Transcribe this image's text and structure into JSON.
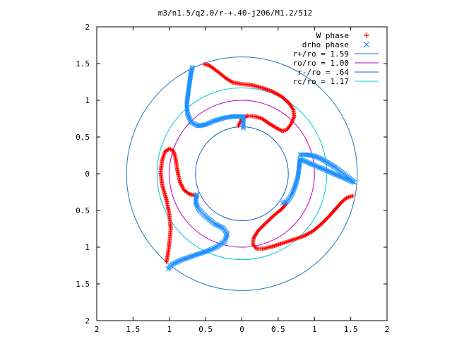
{
  "chart_data": {
    "type": "scatter",
    "title": "m3/n1.5/q2.0/r-+.40-j206/M1.2/512",
    "xlabel": "",
    "ylabel": "",
    "xlim": [
      -2,
      2
    ],
    "ylim": [
      -2,
      2
    ],
    "x_tick_labels": [
      "2",
      "1.5",
      "1",
      "0.5",
      "0",
      "0.5",
      "1",
      "1.5",
      "2"
    ],
    "y_tick_labels": [
      "2",
      "1.5",
      "1",
      "0.5",
      "0",
      "0.5",
      "1",
      "1.5",
      "2"
    ],
    "grid": false,
    "legend_position": "top-right",
    "colors": {
      "w_phase": "#ff0000",
      "drho_phase": "#1e90ff",
      "r_plus": "#1f77b4",
      "r_o": "#c000c0",
      "r_minus": "#1060d0",
      "r_c": "#00c8d8"
    },
    "legend": [
      {
        "label": "W phase",
        "kind": "plus",
        "color": "#ff0000"
      },
      {
        "label": "drho phase",
        "kind": "cross",
        "color": "#1e90ff"
      },
      {
        "label": "r+/ro = 1.59",
        "kind": "line",
        "color": "#1f77b4"
      },
      {
        "label": "ro/ro = 1.00",
        "kind": "line",
        "color": "#c000c0"
      },
      {
        "label": "r-/ro = .64",
        "kind": "line",
        "color": "#1060d0"
      },
      {
        "label": "rc/ro = 1.17",
        "kind": "line",
        "color": "#00c8d8"
      }
    ],
    "circles": [
      {
        "name": "r+/ro = 1.59",
        "radius": 1.59,
        "color": "#1f77b4"
      },
      {
        "name": "ro/ro = 1.00",
        "radius": 1.0,
        "color": "#c000c0"
      },
      {
        "name": "r-/ro = .64",
        "radius": 0.64,
        "color": "#1060d0"
      },
      {
        "name": "rc/ro = 1.17",
        "radius": 1.17,
        "color": "#00c8d8"
      }
    ],
    "series": [
      {
        "name": "W phase",
        "marker": "plus",
        "color": "#ff0000",
        "arms": [
          [
            [
              -0.05,
              0.65
            ],
            [
              0.0,
              0.75
            ],
            [
              0.08,
              0.79
            ],
            [
              0.18,
              0.78
            ],
            [
              0.28,
              0.75
            ],
            [
              0.38,
              0.68
            ],
            [
              0.48,
              0.62
            ],
            [
              0.56,
              0.58
            ],
            [
              0.62,
              0.6
            ],
            [
              0.68,
              0.68
            ],
            [
              0.72,
              0.78
            ],
            [
              0.71,
              0.87
            ],
            [
              0.65,
              0.96
            ],
            [
              0.55,
              1.05
            ],
            [
              0.42,
              1.12
            ],
            [
              0.28,
              1.17
            ],
            [
              0.12,
              1.21
            ],
            [
              0.0,
              1.22
            ],
            [
              -0.12,
              1.24
            ],
            [
              -0.22,
              1.3
            ],
            [
              -0.32,
              1.38
            ],
            [
              -0.4,
              1.44
            ],
            [
              -0.46,
              1.48
            ],
            [
              -0.52,
              1.49
            ]
          ],
          [
            [
              0.62,
              -0.4
            ],
            [
              0.55,
              -0.48
            ],
            [
              0.45,
              -0.56
            ],
            [
              0.32,
              -0.68
            ],
            [
              0.22,
              -0.78
            ],
            [
              0.16,
              -0.88
            ],
            [
              0.15,
              -0.96
            ],
            [
              0.2,
              -1.02
            ],
            [
              0.3,
              -1.02
            ],
            [
              0.42,
              -0.99
            ],
            [
              0.55,
              -0.95
            ],
            [
              0.7,
              -0.9
            ],
            [
              0.85,
              -0.85
            ],
            [
              0.98,
              -0.78
            ],
            [
              1.1,
              -0.68
            ],
            [
              1.2,
              -0.58
            ],
            [
              1.3,
              -0.47
            ],
            [
              1.38,
              -0.38
            ],
            [
              1.44,
              -0.33
            ],
            [
              1.5,
              -0.31
            ],
            [
              1.53,
              -0.3
            ]
          ],
          [
            [
              -0.62,
              -0.3
            ],
            [
              -0.72,
              -0.28
            ],
            [
              -0.8,
              -0.22
            ],
            [
              -0.85,
              -0.12
            ],
            [
              -0.88,
              0.0
            ],
            [
              -0.9,
              0.12
            ],
            [
              -0.92,
              0.24
            ],
            [
              -0.95,
              0.32
            ],
            [
              -1.0,
              0.34
            ],
            [
              -1.06,
              0.3
            ],
            [
              -1.1,
              0.18
            ],
            [
              -1.12,
              0.02
            ],
            [
              -1.1,
              -0.15
            ],
            [
              -1.04,
              -0.35
            ],
            [
              -1.0,
              -0.55
            ],
            [
              -0.98,
              -0.75
            ],
            [
              -1.0,
              -0.95
            ],
            [
              -1.02,
              -1.1
            ],
            [
              -1.04,
              -1.2
            ]
          ]
        ]
      },
      {
        "name": "drho phase",
        "marker": "cross",
        "color": "#1e90ff",
        "arms": [
          [
            [
              -0.68,
              1.45
            ],
            [
              -0.7,
              1.38
            ],
            [
              -0.72,
              1.25
            ],
            [
              -0.74,
              1.1
            ],
            [
              -0.76,
              0.95
            ],
            [
              -0.75,
              0.82
            ],
            [
              -0.7,
              0.7
            ],
            [
              -0.6,
              0.65
            ],
            [
              -0.5,
              0.67
            ],
            [
              -0.38,
              0.72
            ],
            [
              -0.25,
              0.76
            ],
            [
              -0.12,
              0.78
            ],
            [
              0.02,
              0.78
            ],
            [
              0.02,
              0.72
            ],
            [
              0.02,
              0.62
            ]
          ],
          [
            [
              0.8,
              0.26
            ],
            [
              0.9,
              0.26
            ],
            [
              1.0,
              0.24
            ],
            [
              1.1,
              0.2
            ],
            [
              1.2,
              0.14
            ],
            [
              1.3,
              0.08
            ],
            [
              1.4,
              0.0
            ],
            [
              1.48,
              -0.06
            ],
            [
              1.55,
              -0.12
            ],
            [
              0.8,
              0.2
            ],
            [
              0.79,
              0.1
            ],
            [
              0.77,
              -0.05
            ],
            [
              0.73,
              -0.18
            ],
            [
              0.68,
              -0.3
            ],
            [
              0.62,
              -0.38
            ],
            [
              0.56,
              -0.4
            ]
          ],
          [
            [
              -0.62,
              -0.28
            ],
            [
              -0.64,
              -0.38
            ],
            [
              -0.6,
              -0.48
            ],
            [
              -0.5,
              -0.58
            ],
            [
              -0.38,
              -0.68
            ],
            [
              -0.26,
              -0.74
            ],
            [
              -0.2,
              -0.82
            ],
            [
              -0.24,
              -0.92
            ],
            [
              -0.35,
              -1.0
            ],
            [
              -0.5,
              -1.06
            ],
            [
              -0.68,
              -1.12
            ],
            [
              -0.85,
              -1.18
            ],
            [
              -0.97,
              -1.24
            ],
            [
              -1.0,
              -1.28
            ],
            [
              -1.02,
              -1.3
            ]
          ]
        ]
      }
    ]
  }
}
